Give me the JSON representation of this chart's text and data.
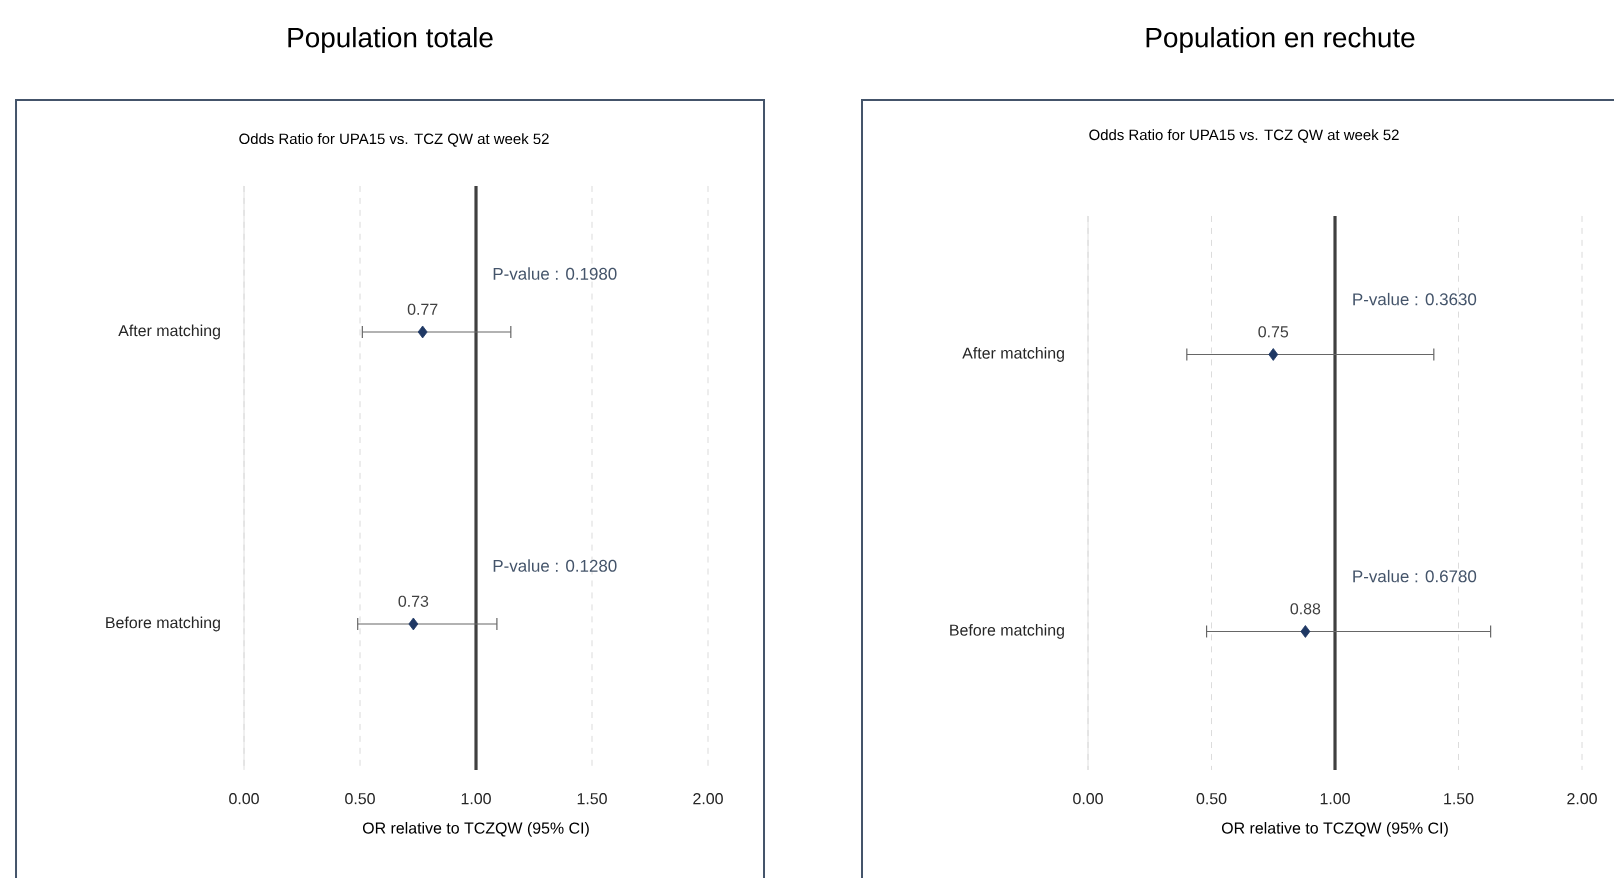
{
  "chart_data": [
    {
      "type": "scatter",
      "orientation": "horizontal",
      "title": "Population totale",
      "subtitle": "Odds Ratio for UPA15 vs. TCZ QW at week 52",
      "xlabel": "OR relative to TCZQW (95% CI)",
      "categories": [
        "After matching",
        "Before matching"
      ],
      "values": [
        0.77,
        0.73
      ],
      "value_labels": [
        "0.77",
        "0.73"
      ],
      "errors": [
        [
          0.51,
          1.15
        ],
        [
          0.49,
          1.09
        ]
      ],
      "color": "#1f3864",
      "marker": "diamond",
      "xlim": [
        0,
        2
      ],
      "xticks": [
        {
          "value": 0,
          "label": "0.00"
        },
        {
          "value": 0.5,
          "label": "0.50"
        },
        {
          "value": 1,
          "label": "1.00"
        },
        {
          "value": 1.5,
          "label": "1.50"
        },
        {
          "value": 2,
          "label": "2.00"
        }
      ],
      "grid": "x",
      "ref_lines": [
        {
          "axis": "x",
          "value": 1,
          "color": "#404040"
        }
      ],
      "annotations": [
        "P-value : 0.1980",
        "P-value : 0.1280"
      ]
    },
    {
      "type": "scatter",
      "orientation": "horizontal",
      "title": "Population en rechute",
      "subtitle": "Odds Ratio for UPA15 vs. TCZ QW at week 52",
      "xlabel": "OR relative to TCZQW (95% CI)",
      "categories": [
        "After matching",
        "Before matching"
      ],
      "values": [
        0.75,
        0.88
      ],
      "value_labels": [
        "0.75",
        "0.88"
      ],
      "errors": [
        [
          0.4,
          1.4
        ],
        [
          0.48,
          1.63
        ]
      ],
      "color": "#1f3864",
      "marker": "diamond",
      "xlim": [
        0,
        2
      ],
      "xticks": [
        {
          "value": 0,
          "label": "0.00"
        },
        {
          "value": 0.5,
          "label": "0.50"
        },
        {
          "value": 1,
          "label": "1.00"
        },
        {
          "value": 1.5,
          "label": "1.50"
        },
        {
          "value": 2,
          "label": "2.00"
        }
      ],
      "grid": "x",
      "ref_lines": [
        {
          "axis": "x",
          "value": 1,
          "color": "#404040"
        }
      ],
      "annotations": [
        "P-value : 0.3630",
        "P-value : 0.6780"
      ]
    }
  ]
}
